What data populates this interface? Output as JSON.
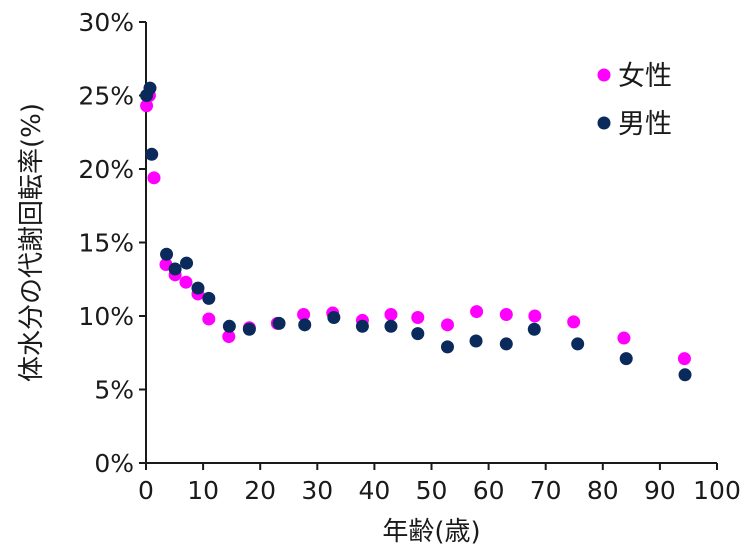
{
  "chart_data": {
    "type": "scatter",
    "xlabel": "年齢(歳)",
    "ylabel": "体水分の代謝回転率(%)",
    "xlim": [
      0,
      100
    ],
    "ylim": [
      0,
      30
    ],
    "x_ticks": [
      0,
      10,
      20,
      30,
      40,
      50,
      60,
      70,
      80,
      90,
      100
    ],
    "x_tick_labels": [
      "0",
      "10",
      "20",
      "30",
      "40",
      "50",
      "60",
      "70",
      "80",
      "90",
      "100"
    ],
    "y_ticks": [
      0,
      5,
      10,
      15,
      20,
      25,
      30
    ],
    "y_tick_labels": [
      "0%",
      "5%",
      "10%",
      "15%",
      "20%",
      "25%",
      "30%"
    ],
    "grid": false,
    "legend_position": "top-right",
    "series": [
      {
        "name": "女性",
        "color": "#ff00ff",
        "points": [
          [
            0.1,
            24.3
          ],
          [
            0.6,
            25.0
          ],
          [
            1.4,
            19.4
          ],
          [
            3.5,
            13.5
          ],
          [
            5.1,
            12.8
          ],
          [
            7.0,
            12.3
          ],
          [
            9.1,
            11.5
          ],
          [
            11.0,
            9.8
          ],
          [
            14.5,
            8.6
          ],
          [
            18.1,
            9.2
          ],
          [
            23.0,
            9.5
          ],
          [
            27.6,
            10.1
          ],
          [
            32.7,
            10.2
          ],
          [
            37.9,
            9.7
          ],
          [
            42.9,
            10.1
          ],
          [
            47.6,
            9.9
          ],
          [
            52.8,
            9.4
          ],
          [
            57.9,
            10.3
          ],
          [
            63.1,
            10.1
          ],
          [
            68.1,
            10.0
          ],
          [
            74.9,
            9.6
          ],
          [
            83.7,
            8.5
          ],
          [
            94.3,
            7.1
          ]
        ]
      },
      {
        "name": "男性",
        "color": "#0a2a5c",
        "points": [
          [
            0.1,
            25.0
          ],
          [
            0.7,
            25.5
          ],
          [
            1.0,
            21.0
          ],
          [
            3.6,
            14.2
          ],
          [
            5.1,
            13.2
          ],
          [
            7.1,
            13.6
          ],
          [
            9.1,
            11.9
          ],
          [
            11.0,
            11.2
          ],
          [
            14.6,
            9.3
          ],
          [
            18.1,
            9.1
          ],
          [
            23.3,
            9.5
          ],
          [
            27.8,
            9.4
          ],
          [
            32.9,
            9.9
          ],
          [
            37.9,
            9.3
          ],
          [
            42.9,
            9.3
          ],
          [
            47.6,
            8.8
          ],
          [
            52.8,
            7.9
          ],
          [
            57.8,
            8.3
          ],
          [
            63.1,
            8.1
          ],
          [
            68.0,
            9.1
          ],
          [
            75.6,
            8.1
          ],
          [
            84.1,
            7.1
          ],
          [
            94.4,
            6.0
          ]
        ]
      }
    ]
  }
}
